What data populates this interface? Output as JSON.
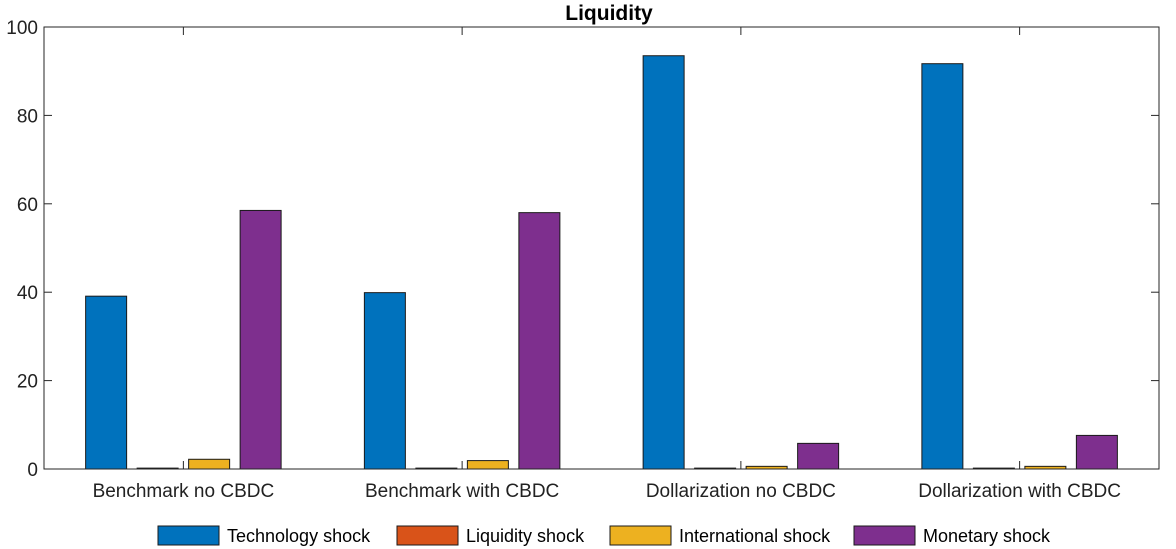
{
  "chart_data": {
    "type": "bar",
    "title": "Liquidity",
    "xlabel": "",
    "ylabel": "",
    "ylim": [
      0,
      100
    ],
    "yticks": [
      0,
      20,
      40,
      60,
      80,
      100
    ],
    "grid": false,
    "legend_position": "bottom",
    "categories": [
      "Benchmark no CBDC",
      "Benchmark with CBDC",
      "Dollarization no CBDC",
      "Dollarization with CBDC"
    ],
    "series": [
      {
        "name": "Technology shock",
        "color": "#0072BD",
        "values": [
          39.1,
          39.9,
          93.5,
          91.7
        ]
      },
      {
        "name": "Liquidity shock",
        "color": "#D95319",
        "values": [
          0.2,
          0.2,
          0.2,
          0.2
        ]
      },
      {
        "name": "International shock",
        "color": "#EDB120",
        "values": [
          2.2,
          1.9,
          0.6,
          0.6
        ]
      },
      {
        "name": "Monetary shock",
        "color": "#7E2F8E",
        "values": [
          58.5,
          58.0,
          5.8,
          7.6
        ]
      }
    ]
  }
}
